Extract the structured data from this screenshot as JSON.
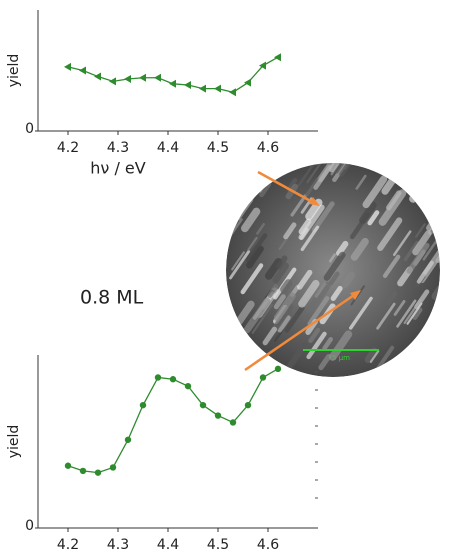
{
  "chart_data": [
    {
      "type": "line",
      "x": [
        4.2,
        4.23,
        4.26,
        4.29,
        4.32,
        4.35,
        4.38,
        4.41,
        4.44,
        4.47,
        4.5,
        4.53,
        4.56,
        4.59,
        4.62
      ],
      "series": [
        {
          "color": "#2e8b2e",
          "marker": "triangle-left",
          "values": [
            0.53,
            0.5,
            0.45,
            0.41,
            0.43,
            0.44,
            0.44,
            0.39,
            0.38,
            0.35,
            0.35,
            0.32,
            0.4,
            0.54,
            0.61
          ]
        }
      ],
      "xlim": [
        4.14,
        4.7
      ],
      "xticks": [
        4.2,
        4.3,
        4.4,
        4.5,
        4.6
      ],
      "ylim": [
        0,
        1
      ],
      "yticks": [
        0
      ],
      "x_label": "hν / eV",
      "y_label": "yield"
    },
    {
      "type": "line",
      "x": [
        4.2,
        4.23,
        4.26,
        4.29,
        4.32,
        4.35,
        4.38,
        4.41,
        4.44,
        4.47,
        4.5,
        4.53,
        4.56,
        4.59,
        4.62
      ],
      "series": [
        {
          "color": "#2e8b2e",
          "marker": "circle",
          "values": [
            0.36,
            0.33,
            0.32,
            0.35,
            0.51,
            0.71,
            0.87,
            0.86,
            0.82,
            0.71,
            0.65,
            0.61,
            0.71,
            0.87,
            0.92
          ]
        }
      ],
      "xlim": [
        4.14,
        4.7
      ],
      "xticks": [
        4.2,
        4.3,
        4.4,
        4.5,
        4.6
      ],
      "ylim": [
        0,
        1
      ],
      "yticks": [
        0
      ],
      "y_label": "yield"
    }
  ],
  "annotations": {
    "coverage": "0.8 ML",
    "scale_bar": "5 µm"
  }
}
